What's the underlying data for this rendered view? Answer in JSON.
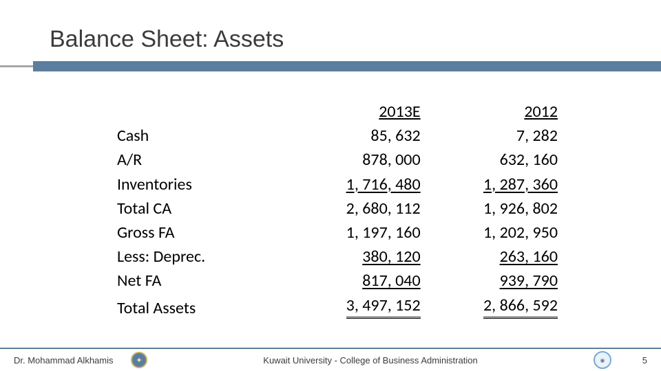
{
  "title": "Balance Sheet: Assets",
  "table": {
    "headers": {
      "col1": "2013E",
      "col2": "2012"
    },
    "rows": [
      {
        "label": "Cash",
        "indent": false,
        "v1": "85, 632",
        "v2": "7, 282",
        "u1": "none",
        "u2": "none"
      },
      {
        "label": "A/R",
        "indent": false,
        "v1": "878, 000",
        "v2": "632, 160",
        "u1": "none",
        "u2": "none"
      },
      {
        "label": "Inventories",
        "indent": false,
        "v1": "1, 716, 480",
        "v2": "1, 287, 360",
        "u1": "single",
        "u2": "single"
      },
      {
        "label": "Total CA",
        "indent": true,
        "v1": "2, 680, 112",
        "v2": "1, 926, 802",
        "u1": "none",
        "u2": "none"
      },
      {
        "label": "Gross FA",
        "indent": false,
        "v1": "1, 197, 160",
        "v2": "1, 202, 950",
        "u1": "none",
        "u2": "none"
      },
      {
        "label": "Less: Deprec.",
        "indent": false,
        "v1": "380, 120",
        "v2": "263, 160",
        "u1": "single",
        "u2": "single"
      },
      {
        "label": "Net FA",
        "indent": true,
        "v1": "817, 040",
        "v2": "939, 790",
        "u1": "single",
        "u2": "single"
      },
      {
        "label": "Total Assets",
        "indent": false,
        "v1": "3, 497, 152",
        "v2": "2, 866, 592",
        "u1": "double",
        "u2": "double"
      }
    ]
  },
  "footer": {
    "author": "Dr. Mohammad Alkhamis",
    "center": "Kuwait University - College of Business Administration",
    "page": "5"
  },
  "colors": {
    "rule_blue": "#5b7e9e",
    "rule_grey": "#a6a6a6"
  }
}
